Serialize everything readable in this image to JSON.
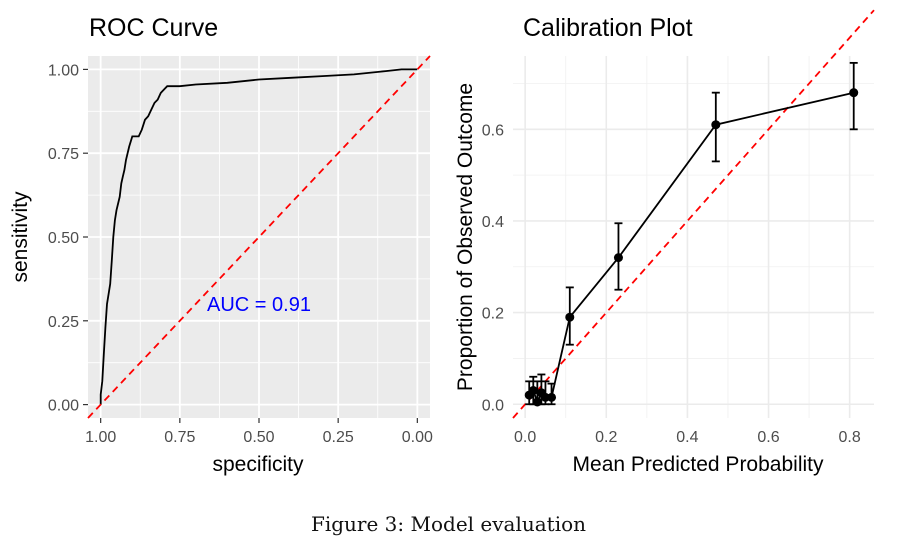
{
  "figure": {
    "caption": "Figure 3: Model evaluation"
  },
  "chart_data": [
    {
      "type": "line",
      "title": "ROC Curve",
      "xlabel": "specificity",
      "ylabel": "sensitivity",
      "x_reversed": true,
      "xlim": [
        1.04,
        -0.04
      ],
      "ylim": [
        -0.04,
        1.04
      ],
      "x_ticks": [
        1.0,
        0.75,
        0.5,
        0.25,
        0.0
      ],
      "x_tick_labels": [
        "1.00",
        "0.75",
        "0.50",
        "0.25",
        "0.00"
      ],
      "y_ticks": [
        0.0,
        0.25,
        0.5,
        0.75,
        1.0
      ],
      "y_tick_labels": [
        "0.00",
        "0.25",
        "0.50",
        "0.75",
        "1.00"
      ],
      "grid": true,
      "background": "#ebebeb",
      "annotation": {
        "text": "AUC = 0.91",
        "x": 0.5,
        "y": 0.3,
        "color": "#0000ff"
      },
      "series": [
        {
          "color": "#000000",
          "points": [
            [
              1.0,
              0.0
            ],
            [
              1.0,
              0.03
            ],
            [
              0.995,
              0.07
            ],
            [
              0.99,
              0.15
            ],
            [
              0.985,
              0.23
            ],
            [
              0.98,
              0.3
            ],
            [
              0.975,
              0.33
            ],
            [
              0.97,
              0.36
            ],
            [
              0.965,
              0.43
            ],
            [
              0.96,
              0.5
            ],
            [
              0.955,
              0.55
            ],
            [
              0.95,
              0.58
            ],
            [
              0.945,
              0.6
            ],
            [
              0.94,
              0.62
            ],
            [
              0.935,
              0.66
            ],
            [
              0.93,
              0.68
            ],
            [
              0.925,
              0.7
            ],
            [
              0.92,
              0.73
            ],
            [
              0.91,
              0.77
            ],
            [
              0.9,
              0.8
            ],
            [
              0.88,
              0.8
            ],
            [
              0.87,
              0.82
            ],
            [
              0.86,
              0.85
            ],
            [
              0.85,
              0.86
            ],
            [
              0.84,
              0.88
            ],
            [
              0.83,
              0.9
            ],
            [
              0.82,
              0.91
            ],
            [
              0.81,
              0.93
            ],
            [
              0.8,
              0.94
            ],
            [
              0.79,
              0.95
            ],
            [
              0.75,
              0.95
            ],
            [
              0.7,
              0.955
            ],
            [
              0.6,
              0.96
            ],
            [
              0.5,
              0.97
            ],
            [
              0.4,
              0.975
            ],
            [
              0.3,
              0.98
            ],
            [
              0.2,
              0.985
            ],
            [
              0.1,
              0.995
            ],
            [
              0.05,
              1.0
            ],
            [
              0.0,
              1.0
            ]
          ]
        },
        {
          "color": "#ff0000",
          "dashed": true,
          "points": [
            [
              1.04,
              -0.04
            ],
            [
              -0.04,
              1.04
            ]
          ]
        }
      ]
    },
    {
      "type": "line",
      "title": "Calibration Plot",
      "xlabel": "Mean Predicted Probability",
      "ylabel": "Proportion of Observed Outcome",
      "xlim": [
        -0.03,
        0.86
      ],
      "ylim": [
        -0.03,
        0.76
      ],
      "x_ticks": [
        0.0,
        0.2,
        0.4,
        0.6,
        0.8
      ],
      "x_tick_labels": [
        "0.0",
        "0.2",
        "0.4",
        "0.6",
        "0.8"
      ],
      "y_ticks": [
        0.0,
        0.2,
        0.4,
        0.6
      ],
      "y_tick_labels": [
        "0.0",
        "0.2",
        "0.4",
        "0.6"
      ],
      "grid": true,
      "background": "#ffffff",
      "reference_line": {
        "color": "#ff0000",
        "dashed": true,
        "points": [
          [
            -0.03,
            -0.03
          ],
          [
            0.86,
            0.86
          ]
        ]
      },
      "series": [
        {
          "color": "#000000",
          "points": [
            {
              "x": 0.01,
              "y": 0.02,
              "lo": 0.0,
              "hi": 0.05
            },
            {
              "x": 0.02,
              "y": 0.03,
              "lo": 0.0,
              "hi": 0.06
            },
            {
              "x": 0.03,
              "y": 0.005,
              "lo": 0.0,
              "hi": 0.05
            },
            {
              "x": 0.04,
              "y": 0.025,
              "lo": 0.0,
              "hi": 0.065
            },
            {
              "x": 0.05,
              "y": 0.015,
              "lo": 0.0,
              "hi": 0.05
            },
            {
              "x": 0.065,
              "y": 0.015,
              "lo": 0.0,
              "hi": 0.045
            },
            {
              "x": 0.11,
              "y": 0.19,
              "lo": 0.13,
              "hi": 0.255
            },
            {
              "x": 0.23,
              "y": 0.32,
              "lo": 0.25,
              "hi": 0.395
            },
            {
              "x": 0.47,
              "y": 0.61,
              "lo": 0.53,
              "hi": 0.68
            },
            {
              "x": 0.81,
              "y": 0.68,
              "lo": 0.6,
              "hi": 0.745
            }
          ]
        }
      ]
    }
  ]
}
